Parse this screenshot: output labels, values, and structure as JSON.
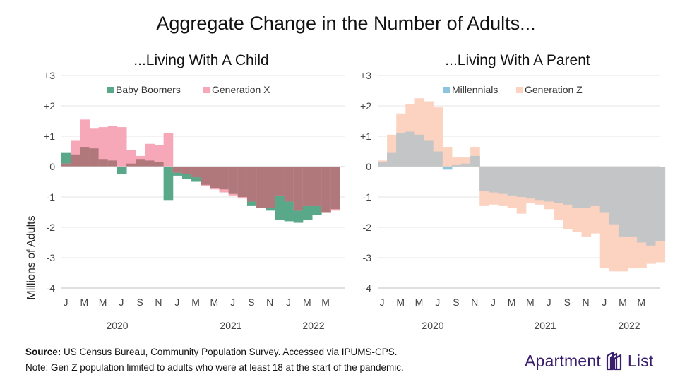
{
  "title": "Aggregate Change in the Number of Adults...",
  "ylabel": "Millions of Adults",
  "footer": {
    "source_label": "Source:",
    "source_text": " US Census Bureau, Community Population Survey. Accessed via IPUMS-CPS.",
    "note": "Note: Gen Z population limited to adults who were at least 18 at the start of the pandemic."
  },
  "logo": {
    "word1": "Apartment",
    "word2": "List"
  },
  "colors": {
    "baby_boomers": "#5aa88a",
    "generation_x": "#f7a8b8",
    "millennials": "#8cc5dd",
    "generation_z": "#fbd3c0",
    "overlap_left": "#b0787a",
    "overlap_right": "#c3c5c6",
    "axis": "#bfbfbf",
    "logo": "#3a1e6e"
  },
  "chart_data": [
    {
      "type": "area",
      "title": "...Living With A Child",
      "ylabel": "Millions of Adults",
      "ylim": [
        -4,
        3
      ],
      "yticks": [
        "+3",
        "+2",
        "+1",
        "0",
        "-1",
        "-2",
        "-3",
        "-4"
      ],
      "month_ticks": [
        "J",
        "M",
        "M",
        "J",
        "S",
        "N",
        "J",
        "M",
        "M",
        "J",
        "S",
        "N",
        "J",
        "M",
        "M"
      ],
      "year_labels": [
        "2020",
        "2021",
        "2022"
      ],
      "series": [
        {
          "name": "Baby Boomers",
          "values": [
            0.45,
            0.4,
            0.65,
            0.6,
            0.25,
            0.2,
            -0.25,
            0.1,
            0.25,
            0.2,
            0.15,
            -1.1,
            -0.3,
            -0.4,
            -0.5,
            -0.6,
            -0.7,
            -0.75,
            -0.9,
            -1.0,
            -1.3,
            -1.35,
            -1.45,
            -1.75,
            -1.8,
            -1.85,
            -1.75,
            -1.6,
            -1.5,
            -1.4
          ]
        },
        {
          "name": "Generation X",
          "values": [
            0.1,
            0.85,
            1.55,
            1.25,
            1.3,
            1.35,
            1.3,
            0.55,
            0.35,
            0.75,
            0.7,
            1.1,
            -0.2,
            -0.25,
            -0.35,
            -0.65,
            -0.75,
            -0.85,
            -0.95,
            -1.05,
            -1.15,
            -1.35,
            -1.35,
            -0.95,
            -1.15,
            -1.45,
            -1.3,
            -1.3,
            -1.5,
            -1.45
          ]
        }
      ]
    },
    {
      "type": "area",
      "title": "...Living With A Parent",
      "ylim": [
        -4,
        3
      ],
      "yticks": [
        "+3",
        "+2",
        "+1",
        "0",
        "-1",
        "-2",
        "-3",
        "-4"
      ],
      "month_ticks": [
        "J",
        "M",
        "M",
        "J",
        "S",
        "N",
        "J",
        "M",
        "M",
        "J",
        "S",
        "N",
        "J",
        "M",
        "M"
      ],
      "year_labels": [
        "2020",
        "2021",
        "2022"
      ],
      "series": [
        {
          "name": "Millennials",
          "values": [
            0.15,
            0.45,
            1.1,
            1.15,
            1.05,
            0.85,
            0.5,
            -0.1,
            0.05,
            0.1,
            0.35,
            -0.8,
            -0.85,
            -0.9,
            -0.95,
            -1.0,
            -1.05,
            -1.1,
            -1.15,
            -1.2,
            -1.25,
            -1.35,
            -1.35,
            -1.3,
            -1.5,
            -1.9,
            -2.3,
            -2.3,
            -2.5,
            -2.6,
            -2.45
          ]
        },
        {
          "name": "Generation Z",
          "values": [
            0.2,
            1.05,
            1.75,
            2.05,
            2.25,
            2.15,
            1.95,
            0.65,
            0.3,
            0.3,
            0.65,
            -1.3,
            -1.25,
            -1.3,
            -1.35,
            -1.55,
            -1.2,
            -1.25,
            -1.4,
            -1.75,
            -2.05,
            -2.15,
            -2.3,
            -2.2,
            -3.35,
            -3.45,
            -3.45,
            -3.35,
            -3.35,
            -3.2,
            -3.15
          ]
        }
      ]
    }
  ]
}
